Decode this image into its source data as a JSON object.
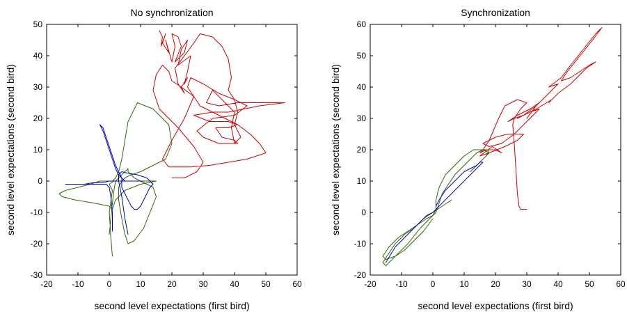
{
  "chart_data": [
    {
      "type": "line",
      "title": "No synchronization",
      "xlabel": "second level expectations (first bird)",
      "ylabel": "second level expectations (second bird)",
      "xlim": [
        -20,
        60
      ],
      "ylim": [
        -30,
        50
      ],
      "xticks": [
        "-20",
        "-10",
        "0",
        "10",
        "20",
        "30",
        "40",
        "50",
        "60"
      ],
      "yticks": [
        "-30",
        "-20",
        "-10",
        "0",
        "10",
        "20",
        "30",
        "40",
        "50"
      ],
      "grid": false,
      "colors": [
        "#cc0000",
        "#336600",
        "#0000cc"
      ],
      "series": [
        {
          "x": [
            16,
            17,
            16.5,
            18,
            17,
            19,
            18,
            20,
            21,
            20,
            22,
            23,
            21,
            24,
            25,
            23,
            22,
            26,
            25,
            24,
            25,
            23,
            24,
            22,
            21,
            27,
            29,
            33,
            36,
            38,
            39,
            38,
            40,
            41,
            40,
            42,
            40,
            39,
            40,
            36,
            33,
            31,
            35,
            41,
            50,
            56,
            48,
            38,
            33,
            27,
            32,
            38,
            41,
            38,
            34,
            36,
            40,
            41,
            35,
            30,
            28,
            33,
            40,
            44,
            40,
            35,
            30,
            26,
            25,
            27,
            29,
            35,
            41,
            45,
            48,
            50,
            44,
            38,
            32,
            26,
            22,
            19,
            17,
            20,
            24,
            27,
            23,
            20,
            19,
            17,
            15,
            14,
            16,
            22,
            27,
            30,
            28,
            24,
            20
          ],
          "y": [
            48,
            46,
            43,
            47,
            44,
            41,
            45,
            38,
            43,
            47,
            46,
            43,
            38,
            41,
            45,
            42,
            37,
            40,
            35,
            31,
            33,
            30,
            28,
            31,
            36,
            44,
            47,
            46,
            43,
            39,
            33,
            29,
            26,
            22,
            18,
            14,
            12,
            17,
            22,
            26,
            29,
            25,
            24,
            25,
            25,
            25,
            24,
            22,
            22,
            21,
            19,
            19,
            18,
            17,
            17,
            14,
            13,
            12,
            12,
            14,
            16,
            20,
            21,
            24,
            26,
            28,
            31,
            33,
            30,
            27,
            24,
            21,
            18,
            15,
            12,
            9,
            7,
            6,
            5,
            4.5,
            4.5,
            4.5,
            7,
            13,
            20,
            27,
            30,
            32,
            35,
            37,
            34,
            29,
            23,
            17,
            11,
            6,
            3,
            1,
            1
          ]
        },
        {
          "x": [
            1,
            0.5,
            0,
            1,
            0,
            1.5,
            2,
            3,
            4,
            6,
            9,
            12,
            15,
            10,
            5,
            2,
            1,
            0,
            -5,
            -11,
            -15,
            -16,
            -14,
            -10,
            -6,
            -3,
            -1,
            0,
            1,
            2,
            3,
            4,
            5,
            6,
            9,
            14,
            19,
            20,
            18,
            14,
            10,
            7,
            5,
            4,
            3,
            3,
            4,
            5,
            6,
            8,
            11,
            13,
            15,
            14,
            12,
            10,
            8,
            7,
            6,
            6,
            5,
            4,
            3,
            2,
            1.5,
            1,
            0.5,
            0
          ],
          "y": [
            -24,
            -18,
            -10,
            -3,
            -1,
            0,
            0,
            0,
            0,
            0,
            0,
            0,
            0,
            -1,
            -3,
            -6,
            -9,
            -8,
            -7,
            -6,
            -5,
            -4,
            -3,
            -2,
            -1,
            0,
            0,
            0,
            0,
            1,
            3,
            7,
            13,
            19,
            25,
            23,
            18,
            12,
            7,
            5,
            3,
            2,
            1,
            0,
            -2,
            -6,
            -12,
            -17,
            -20,
            -19,
            -15,
            -10,
            -5,
            -2,
            -1,
            0,
            1,
            2,
            3,
            4,
            3,
            2,
            1,
            0,
            -3,
            -7,
            -12,
            -17
          ]
        },
        {
          "x": [
            1,
            1,
            0.5,
            0,
            -1,
            -3,
            -7,
            -11,
            -13,
            -14,
            -13,
            -11,
            -8,
            -5,
            -2,
            0,
            1,
            2,
            3,
            4,
            5,
            6,
            8,
            10,
            11,
            9,
            7,
            5,
            4,
            3,
            2,
            1,
            0,
            -1,
            -2,
            -3,
            -2,
            -1,
            0,
            1,
            2,
            3,
            4,
            4,
            5,
            6,
            7,
            8,
            9,
            10,
            11,
            12,
            13,
            14,
            13,
            12,
            9,
            6,
            4,
            3,
            3,
            4,
            5,
            6
          ],
          "y": [
            -16,
            -10,
            -5,
            -2,
            -1,
            -1,
            -1,
            -1,
            -1,
            -1,
            -1,
            -1,
            -1,
            -0.5,
            -0.5,
            0,
            0,
            0,
            0,
            0,
            0,
            0,
            0,
            0,
            0,
            0,
            0,
            0,
            1,
            2,
            4,
            7,
            10,
            13,
            16,
            18,
            17,
            14,
            11,
            8,
            5,
            3,
            1,
            -2,
            -4,
            -6,
            -8,
            -9,
            -9,
            -8,
            -6,
            -4,
            -2,
            -1,
            0,
            1,
            2,
            2.5,
            3,
            2,
            0,
            -5,
            -12,
            -17
          ]
        }
      ]
    },
    {
      "type": "line",
      "title": "Synchronization",
      "xlabel": "second level expectations (first bird)",
      "ylabel": "second level expectations (second bird)",
      "xlim": [
        -20,
        60
      ],
      "ylim": [
        -20,
        60
      ],
      "xticks": [
        "-20",
        "-10",
        "0",
        "10",
        "20",
        "30",
        "40",
        "50",
        "60"
      ],
      "yticks": [
        "-20",
        "-10",
        "0",
        "10",
        "20",
        "30",
        "40",
        "50",
        "60"
      ],
      "grid": false,
      "colors": [
        "#cc0000",
        "#336600",
        "#0000cc"
      ],
      "series": [
        {
          "x": [
            30,
            28,
            27.5,
            27,
            26.5,
            26,
            25.5,
            26,
            28,
            30,
            27,
            23,
            21,
            18,
            16,
            15,
            17,
            20,
            22,
            19,
            15,
            18,
            23,
            27,
            29,
            24,
            20,
            16,
            18,
            22,
            26,
            30,
            34,
            31,
            27,
            29,
            33,
            36,
            38,
            40,
            37,
            41,
            44,
            48,
            52,
            54,
            51,
            47,
            43,
            41,
            44,
            50,
            52,
            49,
            44,
            40,
            37,
            38,
            33,
            29,
            26,
            24,
            27,
            31,
            34,
            35,
            33,
            30
          ],
          "y": [
            1,
            1,
            2,
            6,
            14,
            22,
            28,
            30,
            33,
            35,
            36,
            34,
            30,
            23,
            20,
            19,
            20,
            20,
            19,
            21,
            18,
            19,
            21,
            23,
            25,
            25,
            24,
            22,
            21,
            22,
            25,
            29,
            33,
            32,
            30,
            31,
            34,
            37,
            39,
            41,
            40,
            43,
            47,
            52,
            57,
            59,
            55,
            50,
            45,
            42,
            43,
            47,
            48,
            46,
            41,
            38,
            35,
            36,
            33,
            31,
            30,
            29,
            31,
            33,
            35,
            36,
            34,
            30
          ]
        },
        {
          "x": [
            6,
            3,
            0,
            -3,
            -6,
            -9,
            -12,
            -14,
            -16,
            -15,
            -12,
            -8,
            -4,
            -1,
            1,
            2,
            3,
            5,
            7,
            9,
            11,
            13,
            14,
            16,
            18,
            17,
            15,
            13,
            12,
            13,
            15,
            17,
            18,
            16,
            13,
            10,
            7,
            4,
            2,
            1,
            1,
            0,
            -2,
            -5,
            -8,
            -11,
            -14,
            -16,
            -15,
            -12,
            -9,
            -6,
            -3,
            0
          ],
          "y": [
            4,
            2,
            0,
            -2,
            -5,
            -7,
            -10,
            -13,
            -16,
            -17,
            -14,
            -10,
            -5,
            -2,
            0,
            3,
            6,
            9,
            12,
            14,
            16,
            18,
            19,
            20,
            20,
            18,
            16,
            14,
            13,
            14,
            16,
            18,
            19,
            20,
            20,
            18,
            15,
            12,
            8,
            4,
            1,
            -1,
            -2,
            -4,
            -6,
            -8,
            -11,
            -14,
            -15,
            -14,
            -12,
            -9,
            -6,
            -2
          ]
        },
        {
          "x": [
            -15,
            -12,
            -9,
            -6,
            -4,
            -2,
            0,
            2,
            4,
            6,
            8,
            10,
            12,
            14,
            15,
            16,
            15,
            14,
            12,
            10,
            8,
            6,
            4,
            2,
            1
          ],
          "y": [
            -16,
            -11,
            -8,
            -5,
            -3,
            -1,
            0,
            2,
            4,
            6,
            8,
            10,
            12,
            14,
            15,
            16,
            16,
            15,
            14,
            13,
            11,
            9,
            7,
            4,
            2
          ]
        }
      ]
    }
  ]
}
